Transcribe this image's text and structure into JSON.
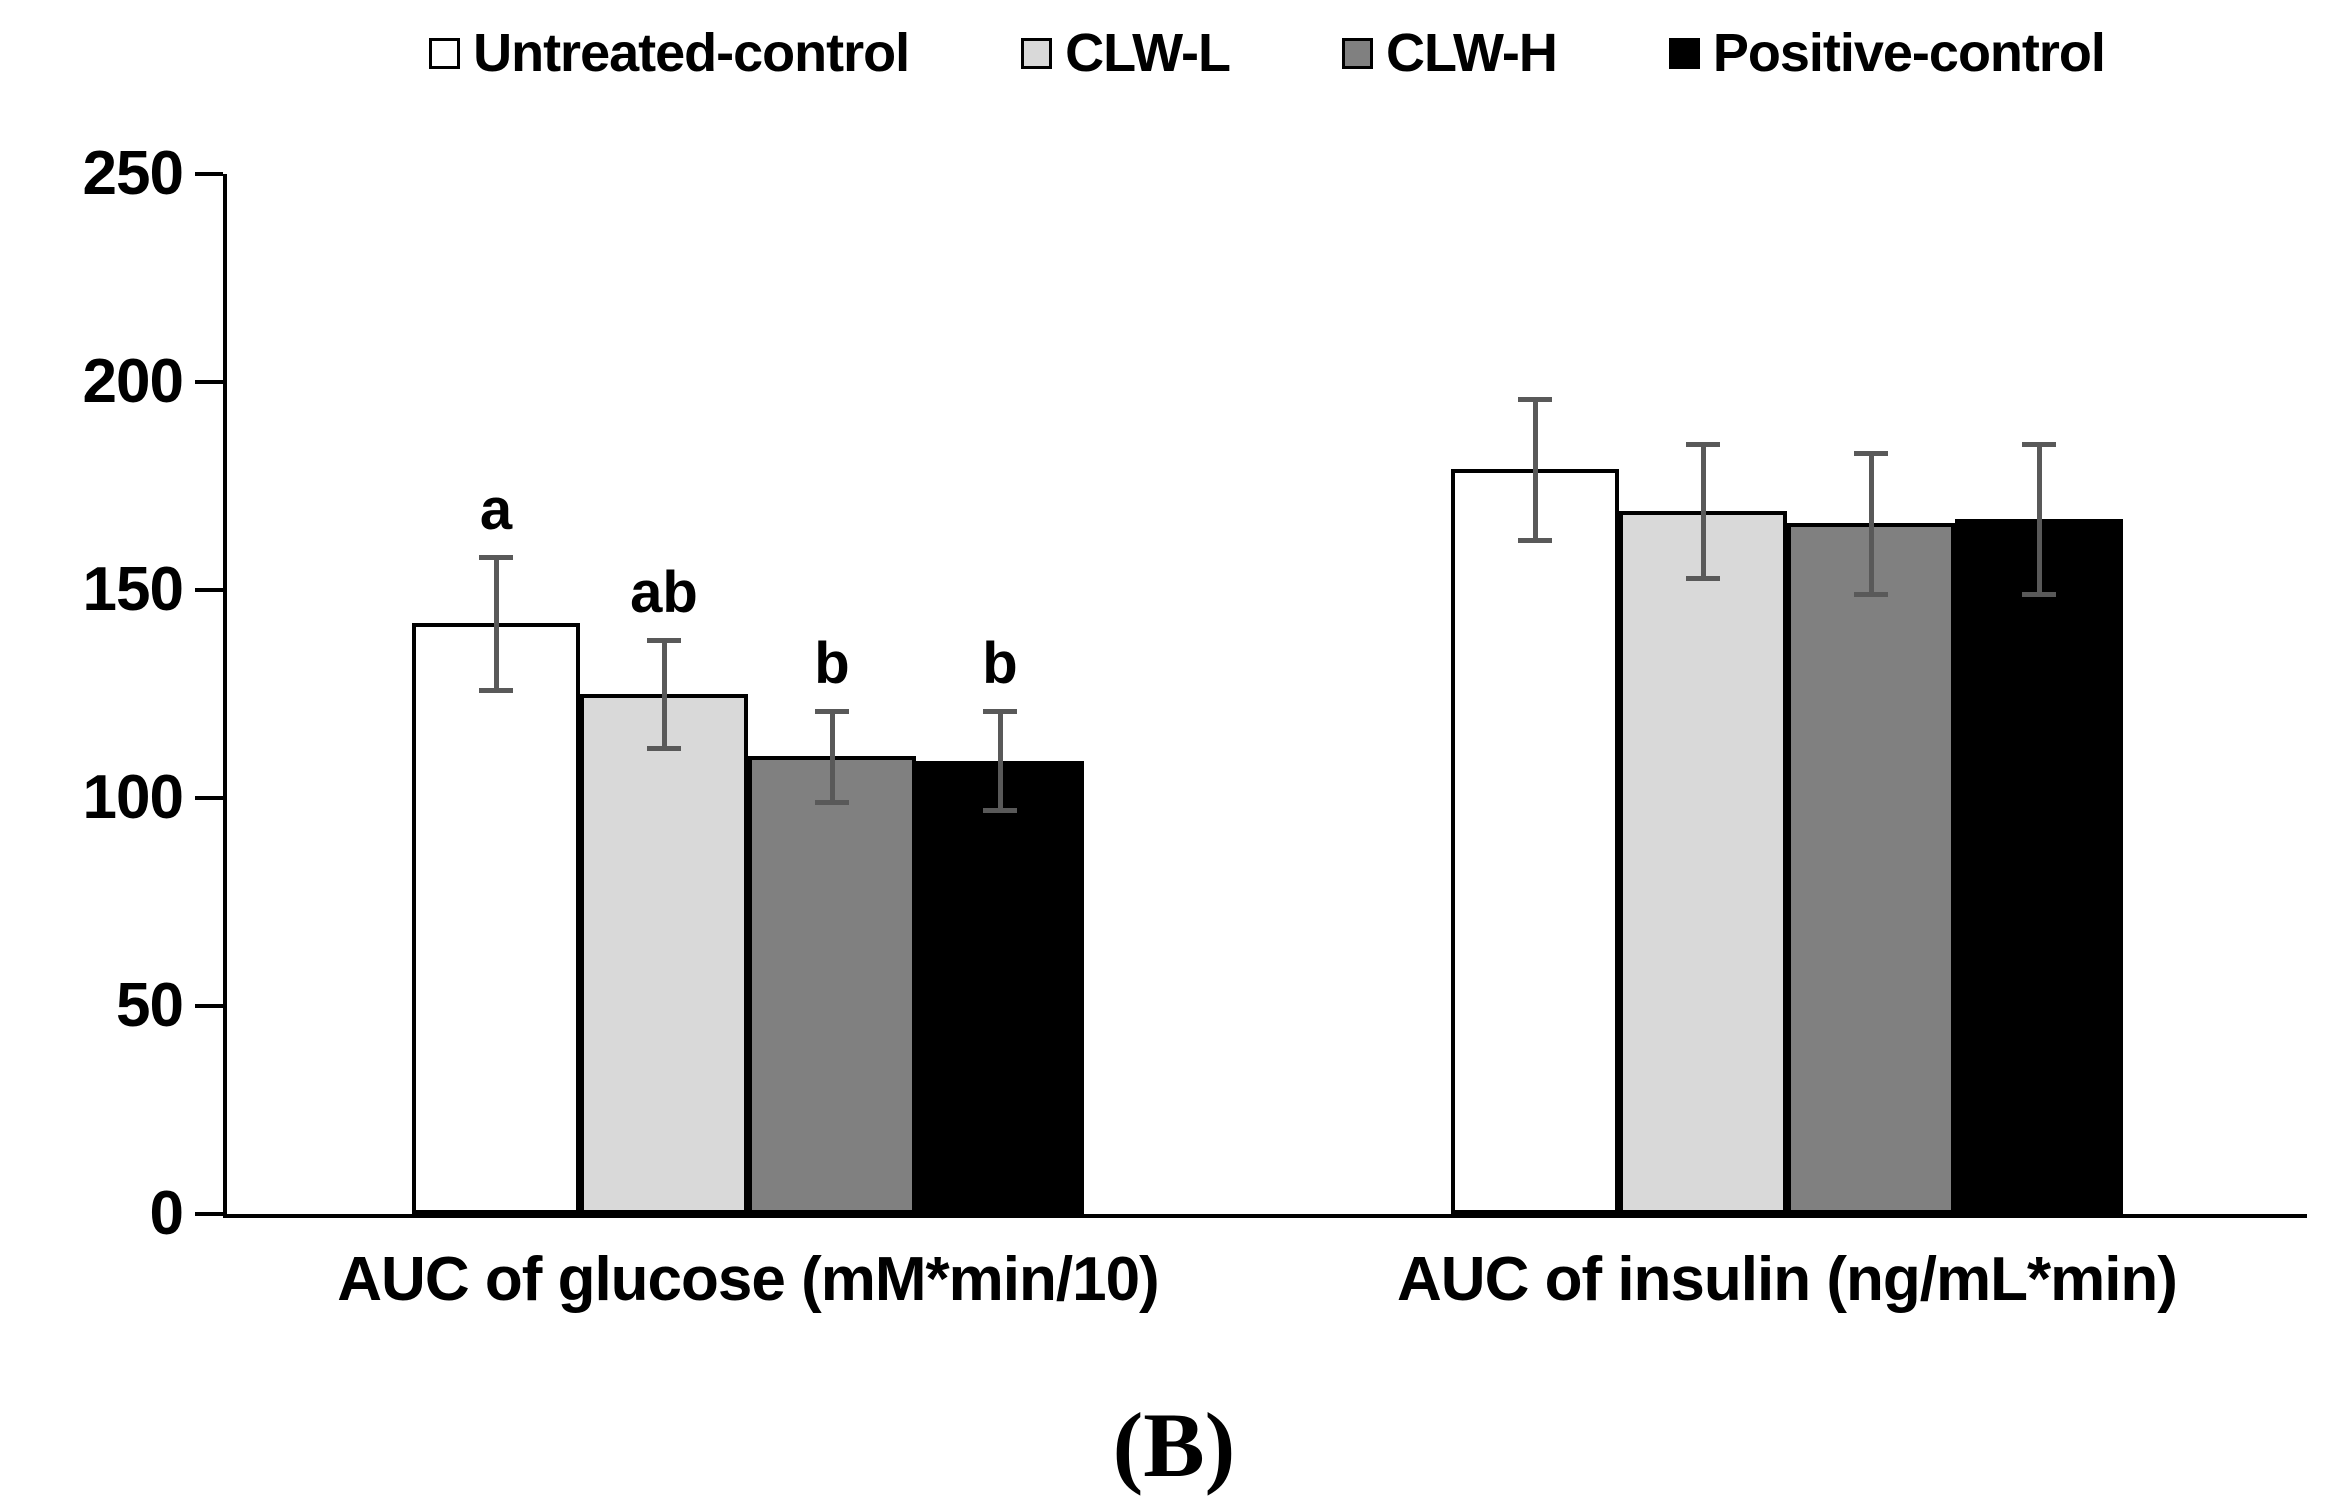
{
  "chart_data": {
    "type": "bar",
    "title": "",
    "panel_label": "(B)",
    "categories": [
      "AUC of glucose (mM*min/10)",
      "AUC of insulin (ng/mL*min)"
    ],
    "series": [
      {
        "name": "Untreated-control",
        "color": "#ffffff",
        "values": [
          142,
          179
        ],
        "errors": [
          16,
          17
        ],
        "sig_labels": [
          "a",
          ""
        ]
      },
      {
        "name": "CLW-L",
        "color": "#d9d9d9",
        "values": [
          125,
          169
        ],
        "errors": [
          13,
          16
        ],
        "sig_labels": [
          "ab",
          ""
        ]
      },
      {
        "name": "CLW-H",
        "color": "#808080",
        "values": [
          110,
          166
        ],
        "errors": [
          11,
          17
        ],
        "sig_labels": [
          "b",
          ""
        ]
      },
      {
        "name": "Positive-control",
        "color": "#000000",
        "values": [
          109,
          167
        ],
        "errors": [
          12,
          18
        ],
        "sig_labels": [
          "b",
          ""
        ]
      }
    ],
    "ylim": [
      0,
      250
    ],
    "yticks": [
      0,
      50,
      100,
      150,
      200,
      250
    ],
    "xlabel": "",
    "ylabel": "",
    "grid": false,
    "legend_position": "top",
    "error_bar_color": "#595959",
    "axis_color": "#000000"
  }
}
